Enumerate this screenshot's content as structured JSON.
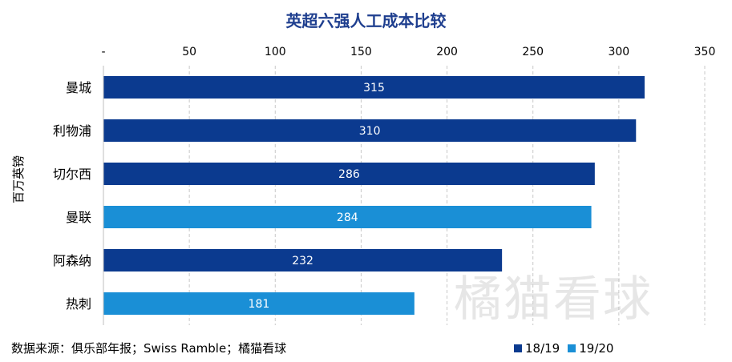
{
  "chart_data": {
    "type": "bar",
    "orientation": "horizontal",
    "title": "英超六强人工成本比较",
    "ylabel": "百万英镑",
    "xlim": [
      0,
      350
    ],
    "x_ticks": [
      "-",
      "50",
      "100",
      "150",
      "200",
      "250",
      "300",
      "350"
    ],
    "categories": [
      "曼城",
      "利物浦",
      "切尔西",
      "曼联",
      "阿森纳",
      "热刺"
    ],
    "values": [
      315,
      310,
      286,
      284,
      232,
      181
    ],
    "season": [
      "18/19",
      "18/19",
      "18/19",
      "19/20",
      "18/19",
      "19/20"
    ],
    "series": [
      {
        "name": "18/19",
        "color": "#0b3a8f"
      },
      {
        "name": "19/20",
        "color": "#1a8fd6"
      }
    ],
    "grid": true,
    "legend_position": "bottom-right"
  },
  "source_text": "数据来源：俱乐部年报；Swiss Ramble；橘猫看球",
  "watermark_text": "橘猫看球"
}
